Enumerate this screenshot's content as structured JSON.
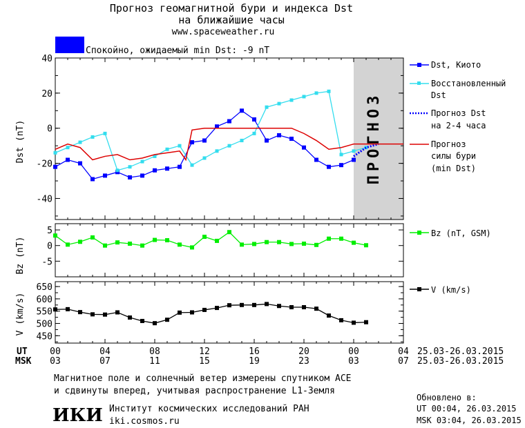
{
  "header": {
    "title_line1": "Прогноз геомагнитной бури и индекса Dst",
    "title_line2": "на ближайшие часы",
    "url": "www.spaceweather.ru",
    "status_text": "Спокойно, ожидаемый min Dst: -9 nT",
    "status_color": "#0000ff"
  },
  "legend": {
    "dst_kyoto": "Dst, Киото",
    "dst_restored_1": "Восстановленный",
    "dst_restored_2": "Dst",
    "dst_forecast_1": "Прогноз Dst",
    "dst_forecast_2": "на 2-4 часа",
    "storm_forecast_1": "Прогноз",
    "storm_forecast_2": "силы бури",
    "storm_forecast_3": "(min Dst)",
    "bz": "Bz (nT, GSM)",
    "v": "V (km/s)"
  },
  "forecast_band_label": "ПРОГНОЗ",
  "time_axis": {
    "ut_label": "UT",
    "msk_label": "MSK",
    "ut_ticks": [
      "00",
      "04",
      "08",
      "12",
      "16",
      "20",
      "00",
      "04"
    ],
    "msk_ticks": [
      "03",
      "07",
      "11",
      "15",
      "19",
      "23",
      "03",
      "07"
    ],
    "ut_range": "25.03-26.03.2015",
    "msk_range": "25.03-26.03.2015"
  },
  "footer": {
    "note_line1": "Магнитное поле и солнечный ветер измерены спутником ACE",
    "note_line2": "и сдвинуты вперед, учитывая распространение L1-Земля",
    "institute": "Институт космических исследований РАН",
    "institute_url": "iki.cosmos.ru",
    "logo_text": "ИКИ",
    "updated_label": "Обновлено в:",
    "updated_ut": "UT   00:04, 26.03.2015",
    "updated_msk": "MSK 03:04, 26.03.2015"
  },
  "chart_data": [
    {
      "type": "line",
      "panel": "dst",
      "ylabel": "Dst (nT)",
      "xlim": [
        0,
        28
      ],
      "ylim": [
        -52,
        40
      ],
      "yticks": [
        40,
        20,
        0,
        -20,
        -40
      ],
      "forecast_region": [
        24,
        28
      ],
      "series": [
        {
          "name": "Dst, Киото",
          "color": "#0000ff",
          "x": [
            0,
            1,
            2,
            3,
            4,
            5,
            6,
            7,
            8,
            9,
            10,
            11,
            12,
            13,
            14,
            15,
            16,
            17,
            18,
            19,
            20,
            21,
            22,
            23,
            24
          ],
          "y": [
            -22,
            -18,
            -20,
            -29,
            -27,
            -25,
            -28,
            -27,
            -24,
            -23,
            -22,
            -8,
            -7,
            1,
            4,
            10,
            5,
            -7,
            -4,
            -6,
            -11,
            -18,
            -22,
            -21,
            -18
          ]
        },
        {
          "name": "Восстановленный Dst",
          "color": "#33ddee",
          "x": [
            0,
            1,
            2,
            3,
            4,
            5,
            6,
            7,
            8,
            9,
            10,
            11,
            12,
            13,
            14,
            15,
            16,
            17,
            18,
            19,
            20,
            21,
            22,
            23,
            24,
            25
          ],
          "y": [
            -14,
            -11,
            -8,
            -5,
            -3,
            -24,
            -22,
            -19,
            -16,
            -12,
            -10,
            -21,
            -17,
            -13,
            -10,
            -7,
            -3,
            12,
            14,
            16,
            18,
            20,
            21,
            -15,
            -13,
            -11
          ]
        },
        {
          "name": "Прогноз Dst на 2-4 часа",
          "color": "#0000ff",
          "x": [
            24,
            25,
            26
          ],
          "y": [
            -16,
            -11,
            -9
          ]
        },
        {
          "name": "Прогноз силы бури (min Dst)",
          "color": "#dd0000",
          "x": [
            0,
            1,
            2,
            3,
            4,
            5,
            6,
            7,
            8,
            9,
            10,
            10.5,
            11,
            12,
            13,
            14,
            15,
            16,
            17,
            18,
            19,
            20,
            21,
            22,
            23,
            24,
            25,
            26,
            28
          ],
          "y": [
            -12,
            -9,
            -11,
            -18,
            -16,
            -15,
            -18,
            -17,
            -15,
            -14,
            -13,
            -18,
            -1,
            0,
            0,
            0,
            0,
            0,
            0,
            0,
            0,
            -3,
            -7,
            -12,
            -11,
            -9,
            -9,
            -9,
            -9
          ]
        }
      ]
    },
    {
      "type": "line",
      "panel": "bz",
      "ylabel": "Bz (nT)",
      "ylim": [
        -10,
        7
      ],
      "yticks": [
        5,
        0,
        -5
      ],
      "series": [
        {
          "name": "Bz (nT, GSM)",
          "color": "#00ee00",
          "x": [
            0,
            1,
            2,
            3,
            4,
            5,
            6,
            7,
            8,
            9,
            10,
            11,
            12,
            13,
            14,
            15,
            16,
            17,
            18,
            19,
            20,
            21,
            22,
            23,
            24,
            25
          ],
          "y": [
            3.2,
            0.3,
            1.2,
            2.6,
            0,
            1,
            0.6,
            0,
            1.8,
            1.7,
            0.3,
            -0.6,
            2.8,
            1.5,
            4.3,
            0.3,
            0.5,
            1.1,
            1.1,
            0.5,
            0.6,
            0.2,
            2.2,
            2.2,
            0.9,
            0.1
          ]
        }
      ]
    },
    {
      "type": "line",
      "panel": "v",
      "ylabel": "V (km/s)",
      "ylim": [
        420,
        670
      ],
      "yticks": [
        650,
        600,
        550,
        500,
        450
      ],
      "series": [
        {
          "name": "V (km/s)",
          "color": "#000000",
          "x": [
            0,
            1,
            2,
            3,
            4,
            5,
            6,
            7,
            8,
            9,
            10,
            11,
            12,
            13,
            14,
            15,
            16,
            17,
            18,
            19,
            20,
            21,
            22,
            23,
            24,
            25
          ],
          "y": [
            557,
            558,
            546,
            537,
            536,
            545,
            524,
            510,
            501,
            515,
            544,
            545,
            555,
            563,
            574,
            575,
            575,
            579,
            571,
            566,
            566,
            560,
            532,
            513,
            503,
            505
          ]
        }
      ]
    }
  ]
}
